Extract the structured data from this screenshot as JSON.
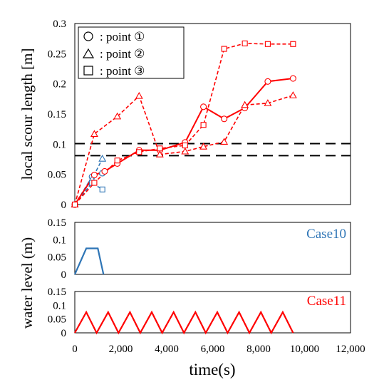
{
  "chart_data": [
    {
      "type": "line",
      "ylabel": "local scour length [m]",
      "ylim": [
        0,
        0.3
      ],
      "yticks": [
        "0",
        "0.05",
        "0.1",
        "0.15",
        "0.2",
        "0.25",
        "0.3"
      ],
      "xlim": [
        0,
        12000
      ],
      "reference_lines": [
        0.101,
        0.081
      ],
      "legend": {
        "placement": "top-left",
        "entries": [
          {
            "marker": "circle",
            "label": ": point ①"
          },
          {
            "marker": "triangle",
            "label": ": point ②"
          },
          {
            "marker": "square",
            "label": ": point ③"
          }
        ]
      },
      "series": [
        {
          "group": "Case10",
          "marker": "circle",
          "style": "dashed",
          "color": "#2e75b6",
          "x": [
            0,
            750,
            1200
          ],
          "y": [
            0,
            0.046,
            0.052
          ]
        },
        {
          "group": "Case10",
          "marker": "triangle",
          "style": "dashed",
          "color": "#2e75b6",
          "x": [
            0,
            750,
            1200
          ],
          "y": [
            0,
            0.042,
            0.076
          ]
        },
        {
          "group": "Case10",
          "marker": "square",
          "style": "dashed",
          "color": "#2e75b6",
          "x": [
            0,
            750,
            1200
          ],
          "y": [
            0,
            0.036,
            0.025
          ]
        },
        {
          "group": "Case11",
          "marker": "circle",
          "style": "solid",
          "color": "#ff0000",
          "x": [
            0,
            850,
            1300,
            1850,
            2800,
            3700,
            4800,
            5600,
            6500,
            7400,
            8400,
            9500
          ],
          "y": [
            0,
            0.049,
            0.055,
            0.068,
            0.09,
            0.09,
            0.103,
            0.162,
            0.142,
            0.16,
            0.204,
            0.209
          ]
        },
        {
          "group": "Case11",
          "marker": "triangle",
          "style": "dashed",
          "color": "#ff0000",
          "x": [
            0,
            850,
            1850,
            2800,
            3700,
            4800,
            5600,
            6500,
            7400,
            8400,
            9500
          ],
          "y": [
            0,
            0.117,
            0.146,
            0.18,
            0.083,
            0.088,
            0.096,
            0.104,
            0.165,
            0.168,
            0.181
          ]
        },
        {
          "group": "Case11",
          "marker": "square",
          "style": "dashed",
          "color": "#ff0000",
          "x": [
            0,
            850,
            1850,
            2800,
            3700,
            4800,
            5600,
            6500,
            7400,
            8400,
            9500
          ],
          "y": [
            0,
            0.036,
            0.073,
            0.087,
            0.093,
            0.098,
            0.132,
            0.258,
            0.267,
            0.266,
            0.266
          ]
        }
      ]
    },
    {
      "type": "line",
      "label": "Case10",
      "color": "#2e75b6",
      "ylim": [
        0,
        0.15
      ],
      "yticks": [
        "0",
        "0.05",
        "0.1",
        "0.15"
      ],
      "xlim": [
        0,
        12000
      ],
      "series": [
        {
          "x": [
            0,
            500,
            1000,
            1250
          ],
          "y": [
            0,
            0.075,
            0.075,
            0
          ]
        }
      ]
    },
    {
      "type": "line",
      "label": "Case11",
      "color": "#ff0000",
      "ylim": [
        0,
        0.15
      ],
      "yticks": [
        "0",
        "0.05",
        "0.1",
        "0.15"
      ],
      "xlim": [
        0,
        12000
      ],
      "xticks": [
        "0",
        "2,000",
        "4,000",
        "6,000",
        "8,000",
        "10,000",
        "12,000"
      ],
      "series": [
        {
          "x": [
            0,
            500,
            950,
            1450,
            1900,
            2400,
            2850,
            3350,
            3800,
            4300,
            4750,
            5250,
            5700,
            6200,
            6650,
            7150,
            7600,
            8100,
            8550,
            9050,
            9500
          ],
          "y": [
            0,
            0.075,
            0,
            0.075,
            0,
            0.075,
            0,
            0.075,
            0,
            0.075,
            0,
            0.075,
            0,
            0.075,
            0,
            0.075,
            0,
            0.075,
            0,
            0.075,
            0
          ]
        }
      ]
    }
  ],
  "shared_labels": {
    "xlabel": "time(s)",
    "water_ylabel": "water level (m)"
  }
}
